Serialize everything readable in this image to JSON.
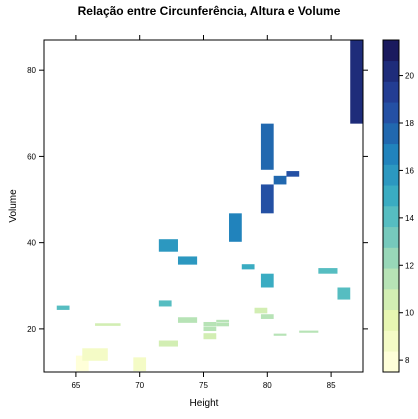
{
  "chart_data": {
    "type": "heatmap",
    "title": "Relação entre Circunferência, Altura e Volume",
    "xlabel": "Height",
    "ylabel": "Volume",
    "xlim": [
      62.5,
      87.5
    ],
    "ylim": [
      10,
      87
    ],
    "x_ticks": [
      65,
      70,
      75,
      80,
      85
    ],
    "y_ticks": [
      20,
      40,
      60,
      80
    ],
    "colorbar": {
      "min": 7.5,
      "max": 21.5,
      "ticks": [
        8,
        10,
        12,
        14,
        16,
        18,
        20
      ],
      "colors": [
        "#ffffd9",
        "#f4fbc6",
        "#e7f6b2",
        "#d2eeb3",
        "#b7e3b6",
        "#98d7b8",
        "#76c9bc",
        "#56bdc1",
        "#3aacc2",
        "#2c98c0",
        "#2183bc",
        "#2168af",
        "#2450a4",
        "#233d93",
        "#1e2c7a",
        "#1a1a5e"
      ]
    },
    "tiles": [
      {
        "x0": 65,
        "x1": 66,
        "y0": 10.2,
        "y1": 13.8,
        "z": 8.3
      },
      {
        "x0": 65.5,
        "x1": 67.5,
        "y0": 12.6,
        "y1": 15.5,
        "z": 8.6
      },
      {
        "x0": 69.5,
        "x1": 70.5,
        "y0": 10.2,
        "y1": 13.4,
        "z": 8.8
      },
      {
        "x0": 63.5,
        "x1": 64.5,
        "y0": 24.4,
        "y1": 25.4,
        "z": 14.2
      },
      {
        "x0": 66.5,
        "x1": 68.5,
        "y0": 20.7,
        "y1": 21.3,
        "z": 10.5
      },
      {
        "x0": 71.5,
        "x1": 72.5,
        "y0": 25.2,
        "y1": 26.6,
        "z": 13.8
      },
      {
        "x0": 71.5,
        "x1": 73,
        "y0": 15.9,
        "y1": 17.3,
        "z": 10.2
      },
      {
        "x0": 73,
        "x1": 74.5,
        "y0": 21.4,
        "y1": 22.7,
        "z": 11.2
      },
      {
        "x0": 71.5,
        "x1": 73,
        "y0": 37.9,
        "y1": 40.8,
        "z": 16.0
      },
      {
        "x0": 73,
        "x1": 74.5,
        "y0": 34.9,
        "y1": 36.8,
        "z": 15.8
      },
      {
        "x0": 75,
        "x1": 76,
        "y0": 17.6,
        "y1": 19.0,
        "z": 10.8
      },
      {
        "x0": 75,
        "x1": 76,
        "y0": 19.5,
        "y1": 20.5,
        "z": 11.0
      },
      {
        "x0": 75,
        "x1": 76,
        "y0": 20.6,
        "y1": 21.6,
        "z": 11.2
      },
      {
        "x0": 76,
        "x1": 77,
        "y0": 20.6,
        "y1": 21.4,
        "z": 11.0
      },
      {
        "x0": 76,
        "x1": 77,
        "y0": 21.5,
        "y1": 22.1,
        "z": 11.2
      },
      {
        "x0": 77,
        "x1": 78,
        "y0": 40.2,
        "y1": 46.8,
        "z": 16.4
      },
      {
        "x0": 78,
        "x1": 79,
        "y0": 33.8,
        "y1": 35.0,
        "z": 14.8
      },
      {
        "x0": 79,
        "x1": 80,
        "y0": 23.6,
        "y1": 24.9,
        "z": 10.9
      },
      {
        "x0": 79.5,
        "x1": 80.5,
        "y0": 22.3,
        "y1": 23.4,
        "z": 11.3
      },
      {
        "x0": 80.5,
        "x1": 81.5,
        "y0": 18.4,
        "y1": 18.9,
        "z": 11.0
      },
      {
        "x0": 82.5,
        "x1": 84,
        "y0": 19.1,
        "y1": 19.6,
        "z": 11.4
      },
      {
        "x0": 79.5,
        "x1": 80.5,
        "y0": 29.6,
        "y1": 32.8,
        "z": 14.5
      },
      {
        "x0": 84,
        "x1": 85.5,
        "y0": 32.8,
        "y1": 34.1,
        "z": 14.0
      },
      {
        "x0": 85.5,
        "x1": 86.5,
        "y0": 26.8,
        "y1": 29.6,
        "z": 13.7
      },
      {
        "x0": 79.5,
        "x1": 80.5,
        "y0": 56.9,
        "y1": 67.6,
        "z": 17.3
      },
      {
        "x0": 79.5,
        "x1": 80.5,
        "y0": 46.8,
        "y1": 53.5,
        "z": 18.0
      },
      {
        "x0": 80.5,
        "x1": 81.5,
        "y0": 53.5,
        "y1": 55.5,
        "z": 17.9
      },
      {
        "x0": 81.5,
        "x1": 82.5,
        "y0": 55.3,
        "y1": 56.6,
        "z": 18.0
      },
      {
        "x0": 86.5,
        "x1": 87.5,
        "y0": 67.6,
        "y1": 87,
        "z": 20.6
      }
    ]
  }
}
